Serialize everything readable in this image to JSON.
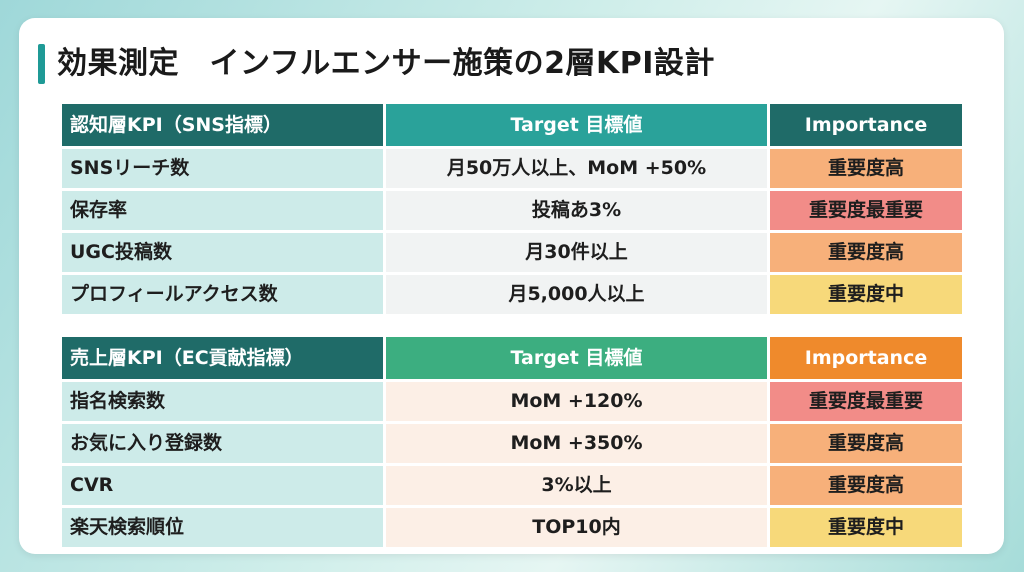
{
  "title": "効果測定　インフルエンサー施策の2層KPI設計",
  "colors": {
    "accent": "#1f9a96",
    "header_dark": "#1f6b68",
    "header_teal": "#2aa29a",
    "header_green": "#3cae80",
    "header_orange": "#ef8a2c",
    "importance_high": "#f7b07a",
    "importance_top": "#f28c88",
    "importance_mid": "#f7d97a"
  },
  "awareness": {
    "headers": [
      "認知層KPI（SNS指標）",
      "Target 目標値",
      "Importance"
    ],
    "rows": [
      {
        "kpi": "SNSリーチ数",
        "target": "月50万人以上、MoM +50%",
        "importance": "重要度高",
        "level": "high"
      },
      {
        "kpi": "保存率",
        "target": "投稿あ3%",
        "importance": "重要度最重要",
        "level": "top"
      },
      {
        "kpi": "UGC投稿数",
        "target": "月30件以上",
        "importance": "重要度高",
        "level": "high"
      },
      {
        "kpi": "プロフィールアクセス数",
        "target": "月5,000人以上",
        "importance": "重要度中",
        "level": "mid"
      }
    ]
  },
  "sales": {
    "headers": [
      "売上層KPI（EC貢献指標）",
      "Target 目標値",
      "Importance"
    ],
    "rows": [
      {
        "kpi": "指名検索数",
        "target": "MoM +120%",
        "importance": "重要度最重要",
        "level": "top"
      },
      {
        "kpi": "お気に入り登録数",
        "target": "MoM +350%",
        "importance": "重要度高",
        "level": "high"
      },
      {
        "kpi": "CVR",
        "target": "3%以上",
        "importance": "重要度高",
        "level": "high"
      },
      {
        "kpi": "楽天検索順位",
        "target": "TOP10内",
        "importance": "重要度中",
        "level": "mid"
      }
    ]
  }
}
